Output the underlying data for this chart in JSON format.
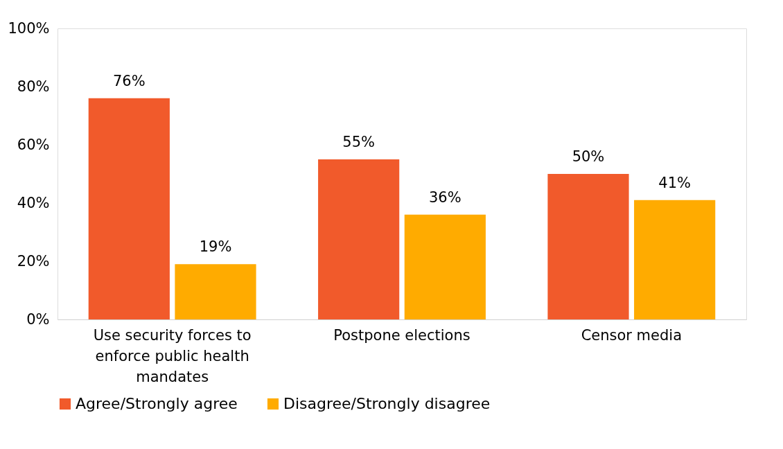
{
  "chart_data": {
    "type": "bar",
    "categories": [
      "Use security forces to enforce public health mandates",
      "Postpone elections",
      "Censor media"
    ],
    "series": [
      {
        "name": "Agree/Strongly agree",
        "color": "#f15a2b",
        "values": [
          76,
          55,
          50
        ],
        "value_labels": [
          "76%",
          "55%",
          "50%"
        ]
      },
      {
        "name": "Disagree/Strongly disagree",
        "color": "#ffab00",
        "values": [
          19,
          36,
          41
        ],
        "value_labels": [
          "19%",
          "36%",
          "41%"
        ]
      }
    ],
    "ylim": [
      0,
      100
    ],
    "yticks": [
      {
        "value": 0,
        "label": "0%"
      },
      {
        "value": 20,
        "label": "20%"
      },
      {
        "value": 40,
        "label": "40%"
      },
      {
        "value": 60,
        "label": "60%"
      },
      {
        "value": 80,
        "label": "80%"
      },
      {
        "value": 100,
        "label": "100%"
      }
    ],
    "grid": false,
    "legend": "bottom"
  }
}
